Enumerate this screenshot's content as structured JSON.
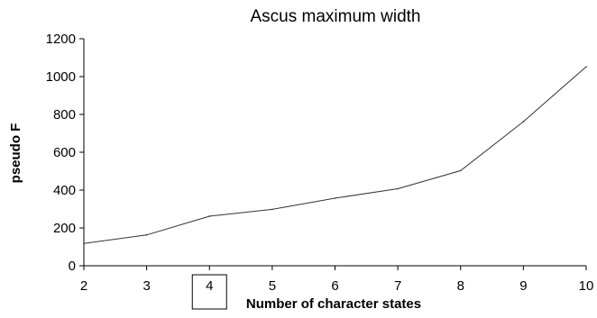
{
  "chart_data": {
    "type": "line",
    "title": "Ascus maximum width",
    "xlabel": "Number of character states",
    "ylabel": "pseudo F",
    "x": [
      2,
      3,
      4,
      5,
      6,
      7,
      8,
      9,
      10
    ],
    "series": [
      {
        "values": [
          118,
          163,
          262,
          298,
          357,
          407,
          503,
          762,
          1052
        ]
      }
    ],
    "ylim": [
      0,
      1200
    ],
    "y_ticks": [
      0,
      200,
      400,
      600,
      800,
      1000,
      1200
    ],
    "x_ticks": [
      2,
      3,
      4,
      5,
      6,
      7,
      8,
      9,
      10
    ],
    "highlighted_x_tick": 4,
    "grid": false,
    "line_color": "#333333"
  }
}
